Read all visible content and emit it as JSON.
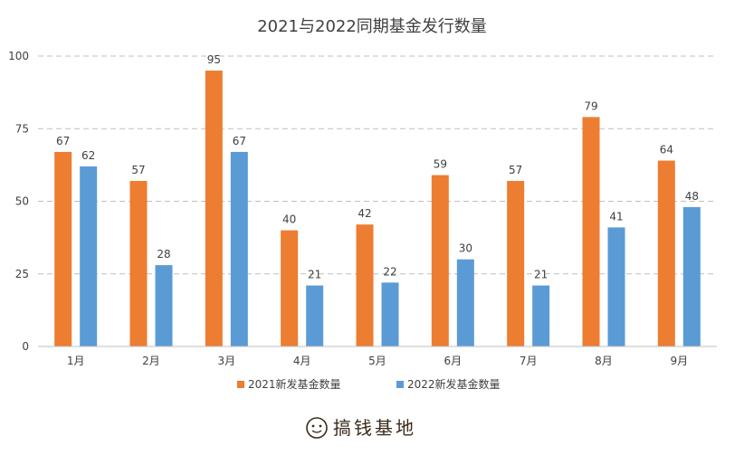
{
  "chart_data": {
    "type": "bar",
    "title": "2021与2022同期基金发行数量",
    "categories": [
      "1月",
      "2月",
      "3月",
      "4月",
      "5月",
      "6月",
      "7月",
      "8月",
      "9月"
    ],
    "series": [
      {
        "name": "2021新发基金数量",
        "values": [
          67,
          57,
          95,
          40,
          42,
          59,
          57,
          79,
          64
        ],
        "color": "#ED7D31"
      },
      {
        "name": "2022新发基金数量",
        "values": [
          62,
          28,
          67,
          21,
          22,
          30,
          21,
          41,
          48
        ],
        "color": "#5B9BD5"
      }
    ],
    "ylim": [
      0,
      100
    ],
    "yticks": [
      0,
      25,
      50,
      75,
      100
    ],
    "grid": true,
    "legend_position": "bottom"
  },
  "brand": {
    "text": "搞钱基地",
    "icon": "smiley-face-icon"
  }
}
